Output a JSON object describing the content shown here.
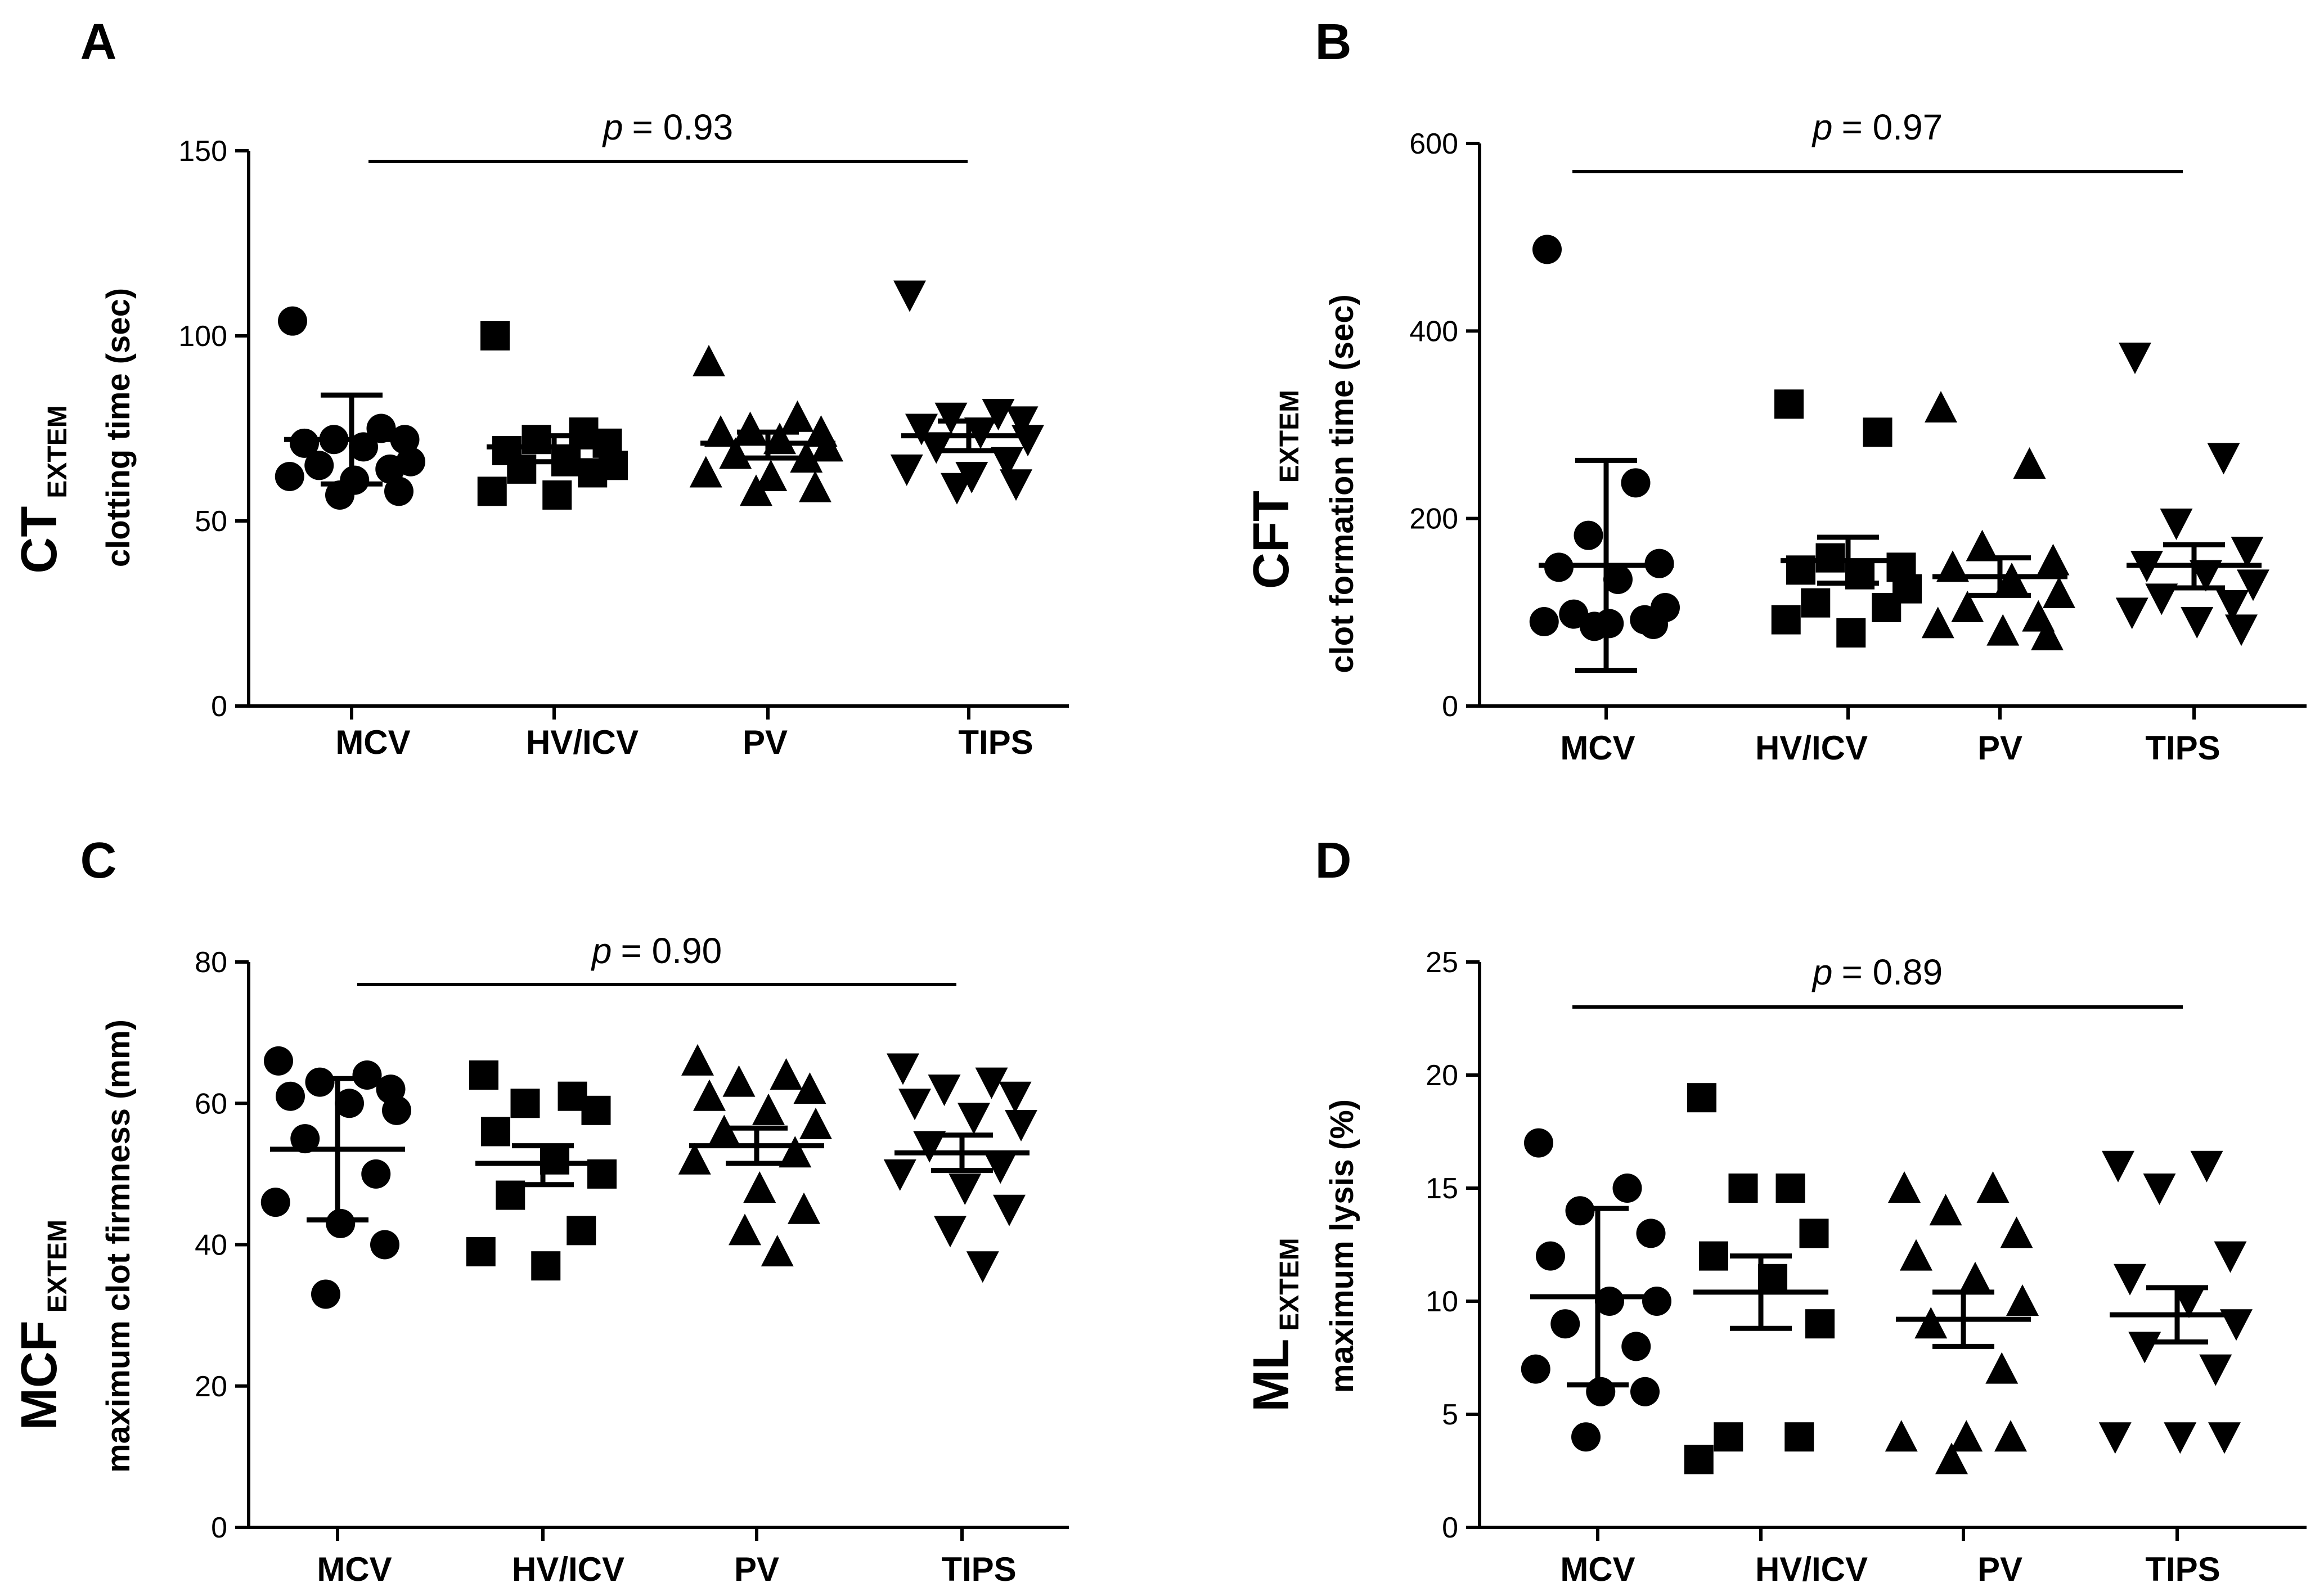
{
  "chart_data": [
    {
      "type": "scatter",
      "panel": "A",
      "ylabel_main": "CT",
      "ylabel_sub": "EXTEM",
      "ylabel": "clotting time (sec)",
      "ylim": [
        0,
        150
      ],
      "yticks": [
        0,
        50,
        100,
        150
      ],
      "categories": [
        "MCV",
        "HV/ICV",
        "PV",
        "TIPS"
      ],
      "p_prefix": "p",
      "p_value": "= 0.93",
      "series": [
        {
          "name": "MCV",
          "marker": "circle",
          "mean": 72,
          "err_low": 60,
          "err_high": 84,
          "values": [
            104,
            75,
            72,
            72,
            71,
            70,
            66,
            65,
            64,
            62,
            61,
            58,
            57
          ]
        },
        {
          "name": "HV/ICV",
          "marker": "square",
          "mean": 70,
          "err_low": 66,
          "err_high": 73,
          "values": [
            100,
            74,
            72,
            71,
            69,
            66,
            65,
            64,
            63,
            58,
            57
          ]
        },
        {
          "name": "PV",
          "marker": "triangle-up",
          "mean": 71,
          "err_low": 67,
          "err_high": 74,
          "values": [
            93,
            78,
            75,
            74,
            74,
            72,
            70,
            68,
            67,
            63,
            62,
            59,
            58
          ]
        },
        {
          "name": "TIPS",
          "marker": "triangle-down",
          "mean": 73,
          "err_low": 69,
          "err_high": 77,
          "values": [
            111,
            79,
            78,
            77,
            75,
            74,
            72,
            70,
            66,
            64,
            62,
            60,
            59
          ]
        }
      ]
    },
    {
      "type": "scatter",
      "panel": "B",
      "ylabel_main": "CFT",
      "ylabel_sub": "EXTEM",
      "ylabel": "clot formation time (sec)",
      "ylim": [
        0,
        600
      ],
      "yticks": [
        0,
        200,
        400,
        600
      ],
      "categories": [
        "MCV",
        "HV/ICV",
        "PV",
        "TIPS"
      ],
      "p_prefix": "p",
      "p_value": "= 0.97",
      "series": [
        {
          "name": "MCV",
          "marker": "circle",
          "mean": 150,
          "err_low": 38,
          "err_high": 262,
          "values": [
            487,
            238,
            182,
            152,
            148,
            135,
            105,
            98,
            92,
            90,
            88,
            87,
            85
          ]
        },
        {
          "name": "HV/ICV",
          "marker": "square",
          "mean": 155,
          "err_low": 131,
          "err_high": 180,
          "values": [
            322,
            292,
            158,
            148,
            145,
            140,
            125,
            110,
            105,
            92,
            78
          ]
        },
        {
          "name": "PV",
          "marker": "triangle-up",
          "mean": 138,
          "err_low": 118,
          "err_high": 158,
          "values": [
            318,
            258,
            170,
            155,
            148,
            135,
            120,
            105,
            95,
            88,
            80,
            75
          ]
        },
        {
          "name": "TIPS",
          "marker": "triangle-down",
          "mean": 150,
          "err_low": 126,
          "err_high": 172,
          "values": [
            372,
            265,
            195,
            165,
            150,
            140,
            130,
            115,
            108,
            100,
            90,
            82
          ]
        }
      ]
    },
    {
      "type": "scatter",
      "panel": "C",
      "ylabel_main": "MCF",
      "ylabel_sub": "EXTEM",
      "ylabel": "maximum clot firmness (mm)",
      "ylim": [
        0,
        80
      ],
      "yticks": [
        0,
        20,
        40,
        60,
        80
      ],
      "categories": [
        "MCV",
        "HV/ICV",
        "PV",
        "TIPS"
      ],
      "p_prefix": "p",
      "p_value": "= 0.90",
      "series": [
        {
          "name": "MCV",
          "marker": "circle",
          "mean": 53.5,
          "err_low": 43.5,
          "err_high": 63.5,
          "values": [
            66,
            64,
            63,
            62,
            61,
            60,
            59,
            55,
            50,
            46,
            43,
            40,
            33
          ]
        },
        {
          "name": "HV/ICV",
          "marker": "square",
          "mean": 51.5,
          "err_low": 48.5,
          "err_high": 54,
          "values": [
            64,
            61,
            60,
            59,
            56,
            52,
            50,
            47,
            42,
            39,
            37
          ]
        },
        {
          "name": "PV",
          "marker": "triangle-up",
          "mean": 54,
          "err_low": 51.5,
          "err_high": 56.5,
          "values": [
            66,
            64,
            63,
            62,
            61,
            59,
            57,
            56,
            53,
            52,
            48,
            45,
            42,
            39
          ]
        },
        {
          "name": "TIPS",
          "marker": "triangle-down",
          "mean": 53,
          "err_low": 50.5,
          "err_high": 55.5,
          "values": [
            65,
            63,
            62,
            61,
            60,
            58,
            57,
            54,
            51,
            50,
            48,
            45,
            42,
            37
          ]
        }
      ]
    },
    {
      "type": "scatter",
      "panel": "D",
      "ylabel_main": "ML",
      "ylabel_sub": "EXTEM",
      "ylabel": "maximum lysis (%)",
      "ylim": [
        0,
        25
      ],
      "yticks": [
        0,
        5,
        10,
        15,
        20,
        25
      ],
      "categories": [
        "MCV",
        "HV/ICV",
        "PV",
        "TIPS"
      ],
      "p_prefix": "p",
      "p_value": "= 0.89",
      "series": [
        {
          "name": "MCV",
          "marker": "circle",
          "mean": 10.2,
          "err_low": 6.3,
          "err_high": 14.1,
          "values": [
            17,
            15,
            14,
            13,
            12,
            10,
            10,
            9,
            8,
            7,
            6,
            6,
            4
          ]
        },
        {
          "name": "HV/ICV",
          "marker": "square",
          "mean": 10.4,
          "err_low": 8.8,
          "err_high": 12,
          "values": [
            19,
            15,
            15,
            13,
            12,
            11,
            9,
            4,
            4,
            3
          ]
        },
        {
          "name": "PV",
          "marker": "triangle-up",
          "mean": 9.2,
          "err_low": 8,
          "err_high": 10.4,
          "values": [
            15,
            15,
            14,
            13,
            12,
            11,
            10,
            9,
            7,
            4,
            4,
            4,
            3
          ]
        },
        {
          "name": "TIPS",
          "marker": "triangle-down",
          "mean": 9.4,
          "err_low": 8.2,
          "err_high": 10.6,
          "values": [
            16,
            16,
            15,
            12,
            11,
            10,
            9,
            8,
            7,
            4,
            4,
            4
          ]
        }
      ]
    }
  ]
}
